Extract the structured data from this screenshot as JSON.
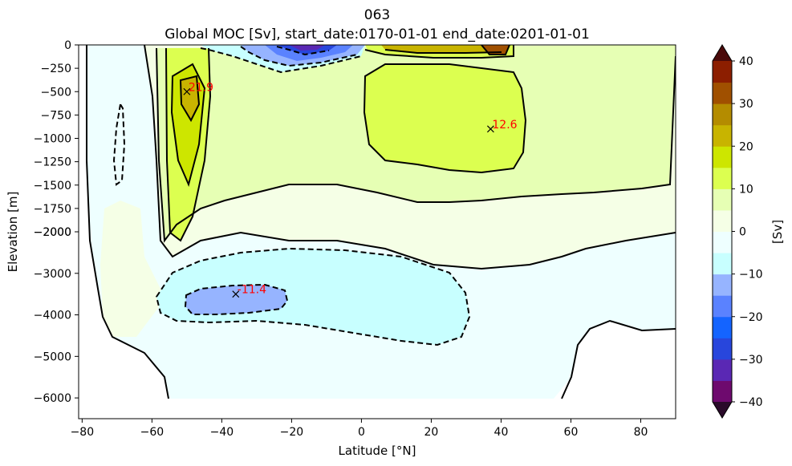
{
  "title": "063",
  "subtitle": "Global MOC [Sv], start_date:0170-01-01 end_date:0201-01-01",
  "chart_data": {
    "type": "heatmap",
    "title": "063",
    "subtitle": "Global MOC [Sv], start_date:0170-01-01 end_date:0201-01-01",
    "xlabel": "Latitude [°N]",
    "ylabel": "Elevation [m]",
    "xlim": [
      -81,
      90
    ],
    "x_ticks": [
      -80,
      -60,
      -40,
      -20,
      0,
      20,
      40,
      60,
      80
    ],
    "x_tick_labels": [
      "−80",
      "−60",
      "−40",
      "−20",
      "0",
      "20",
      "40",
      "60",
      "80"
    ],
    "y_ticks_upper": [
      0,
      -250,
      -500,
      -750,
      -1000,
      -1250,
      -1500,
      -1750,
      -2000
    ],
    "y_tick_labels_upper": [
      "0",
      "−250",
      "−500",
      "−750",
      "−1000",
      "−1250",
      "−1500",
      "−1750",
      "−2000"
    ],
    "y_ticks_lower": [
      -2000,
      -3000,
      -4000,
      -5000,
      -6000
    ],
    "y_tick_labels_lower": [
      "−2000",
      "−3000",
      "−4000",
      "−5000",
      "−6000"
    ],
    "y_upper_range": [
      -2000,
      0
    ],
    "y_lower_range": [
      -6500,
      -2000
    ],
    "grid": false,
    "colorbar": {
      "label": "[Sv]",
      "range": [
        -40,
        40
      ],
      "levels": [
        -40,
        -35,
        -30,
        -25,
        -20,
        -15,
        -10,
        -5,
        0,
        5,
        10,
        15,
        20,
        25,
        30,
        35,
        40
      ],
      "colors": [
        "#6e0a6e",
        "#5a28b4",
        "#2846dc",
        "#1464ff",
        "#5a82ff",
        "#96b4ff",
        "#c8ffff",
        "#eeffff",
        "#f5ffe6",
        "#e6ffb4",
        "#dcff50",
        "#cde600",
        "#c8b400",
        "#b48c00",
        "#a05000",
        "#8c1e00"
      ],
      "under_color": "#2a0a2a",
      "over_color": "#4a0a0a",
      "ticks": [
        -40,
        -30,
        -20,
        -10,
        0,
        10,
        20,
        30,
        40
      ],
      "tick_labels": [
        "−40",
        "−30",
        "−20",
        "−10",
        "0",
        "10",
        "20",
        "30",
        "40"
      ]
    },
    "annotations": [
      {
        "label": "21.9",
        "lat": -50,
        "depth": -500,
        "marker": "x"
      },
      {
        "label": "12.6",
        "lat": 37,
        "depth": -900,
        "marker": "x"
      },
      {
        "label": "-11.4",
        "lat": -36,
        "depth": -3500,
        "marker": "x"
      }
    ]
  }
}
